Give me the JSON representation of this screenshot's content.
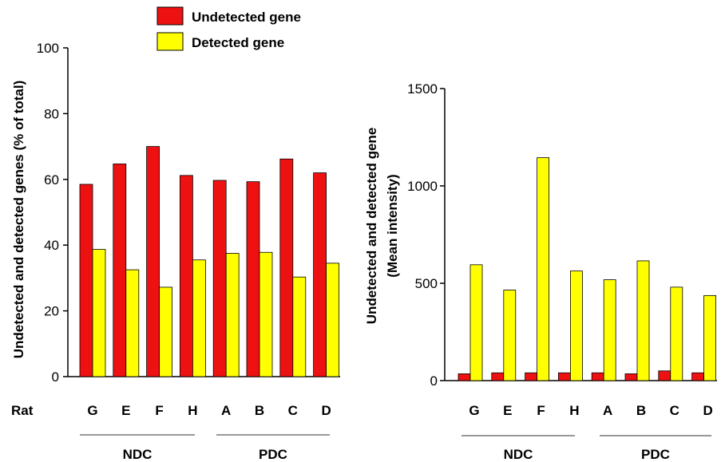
{
  "legend": {
    "undetected_label": "Undetected gene",
    "detected_label": "Detected gene"
  },
  "colors": {
    "undetected": "#ee1111",
    "detected": "#ffff00",
    "outline": "#000000",
    "axis": "#000000",
    "group_line": "#777777"
  },
  "categories_label": "Rat",
  "groups": [
    {
      "label": "NDC",
      "categories": [
        "G",
        "E",
        "F",
        "H"
      ]
    },
    {
      "label": "PDC",
      "categories": [
        "A",
        "B",
        "C",
        "D"
      ]
    }
  ],
  "chart_data": [
    {
      "type": "bar",
      "ylabel": "Undetected and detected genes (% of total)",
      "ylim": [
        0,
        100
      ],
      "yticks": [
        0,
        20,
        40,
        60,
        80,
        100
      ],
      "categories": [
        "G",
        "E",
        "F",
        "H",
        "A",
        "B",
        "C",
        "D"
      ],
      "series": [
        {
          "name": "Undetected gene",
          "values": [
            58.5,
            64.7,
            70,
            61.2,
            59.7,
            59.3,
            66.2,
            62
          ]
        },
        {
          "name": "Detected gene",
          "values": [
            38.7,
            32.5,
            27.2,
            35.5,
            37.5,
            37.8,
            30.3,
            34.5
          ]
        }
      ]
    },
    {
      "type": "bar",
      "ylabel_line1": "Undetected and detected gene",
      "ylabel_line2": "(Mean  intensity)",
      "ylim": [
        0,
        1500
      ],
      "yticks": [
        0,
        500,
        1000,
        1500
      ],
      "categories": [
        "G",
        "E",
        "F",
        "H",
        "A",
        "B",
        "C",
        "D"
      ],
      "series": [
        {
          "name": "Undetected gene",
          "values": [
            35,
            40,
            40,
            40,
            40,
            35,
            50,
            40
          ]
        },
        {
          "name": "Detected gene",
          "values": [
            595,
            465,
            1145,
            563,
            518,
            615,
            480,
            437
          ]
        }
      ]
    }
  ]
}
